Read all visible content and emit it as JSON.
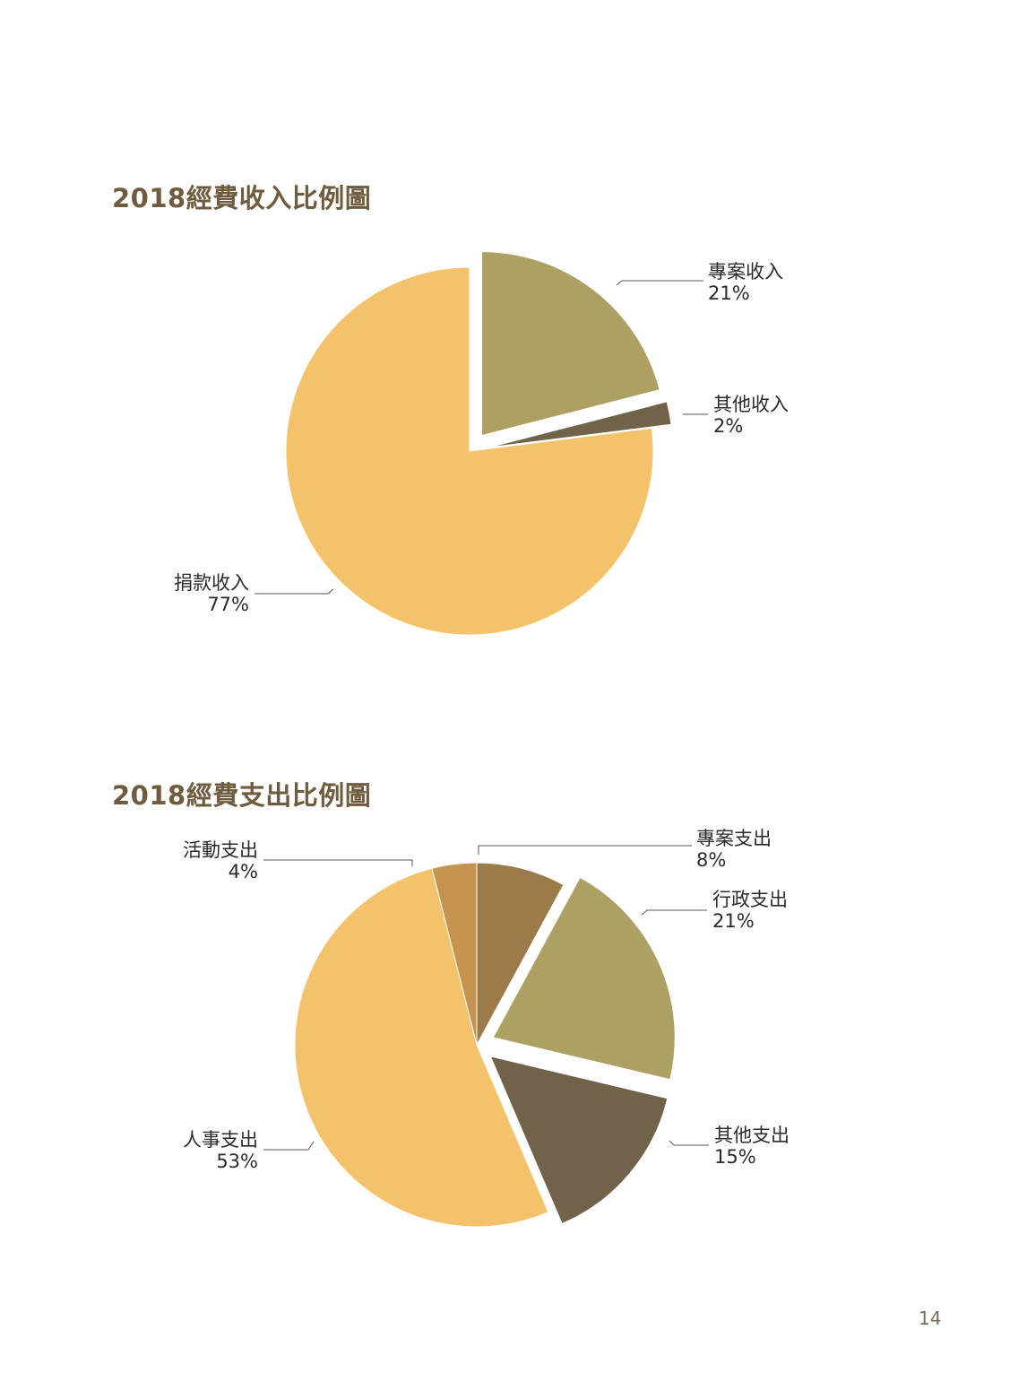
{
  "chart_data": [
    {
      "type": "pie",
      "title": "2018經費收入比例圖",
      "slices": [
        {
          "label": "專案收入",
          "value": 21,
          "value_label": "21%",
          "color": "#aca063",
          "exploded": true
        },
        {
          "label": "其他收入",
          "value": 2,
          "value_label": "2%",
          "color": "#706349",
          "exploded": true
        },
        {
          "label": "捐款收入",
          "value": 77,
          "value_label": "77%",
          "color": "#f4c26a",
          "exploded": false
        }
      ]
    },
    {
      "type": "pie",
      "title": "2018經費支出比例圖",
      "slices": [
        {
          "label": "專案支出",
          "value": 8,
          "value_label": "8%",
          "color": "#9c7b4a",
          "exploded": false
        },
        {
          "label": "行政支出",
          "value": 21,
          "value_label": "21%",
          "color": "#aca063",
          "exploded": true
        },
        {
          "label": "其他支出",
          "value": 15,
          "value_label": "15%",
          "color": "#706349",
          "exploded": true
        },
        {
          "label": "人事支出",
          "value": 53,
          "value_label": "53%",
          "color": "#f4c26a",
          "exploded": false
        },
        {
          "label": "活動支出",
          "value": 4,
          "value_label": "4%",
          "color": "#c59450",
          "exploded": false
        }
      ]
    }
  ],
  "page_number": "14"
}
